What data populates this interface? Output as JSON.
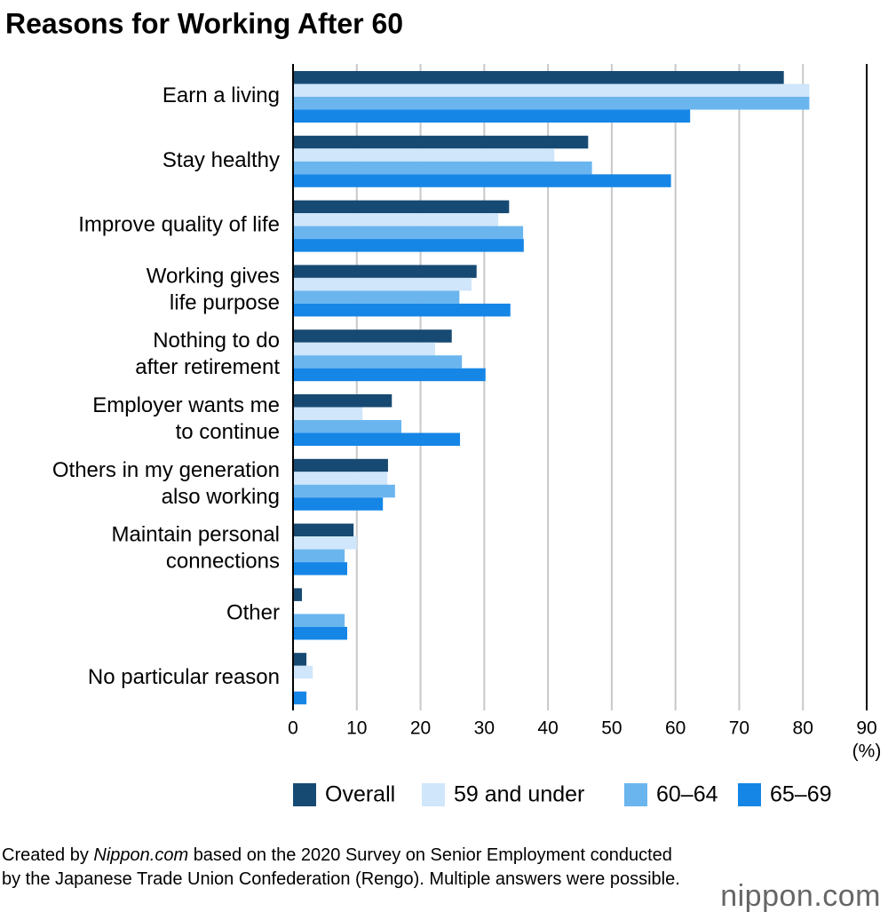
{
  "chart_data": {
    "type": "bar",
    "orientation": "horizontal",
    "title": "Reasons for Working After 60",
    "categories": [
      "Earn a living",
      "Stay healthy",
      "Improve quality of life",
      "Working gives\nlife purpose",
      "Nothing to do\nafter retirement",
      "Employer wants me\nto continue",
      "Others in my generation\nalso working",
      "Maintain personal\nconnections",
      "Other",
      "No particular reason"
    ],
    "series": [
      {
        "name": "Overall",
        "color": "#174a73",
        "values": [
          77.0,
          46.3,
          33.9,
          28.8,
          24.9,
          15.5,
          14.9,
          9.5,
          1.4,
          2.1
        ]
      },
      {
        "name": "59 and under",
        "color": "#cfe6fb",
        "values": [
          81.0,
          41.0,
          32.2,
          28.0,
          22.3,
          10.9,
          14.8,
          10.0,
          null,
          3.1
        ]
      },
      {
        "name": "60–64",
        "color": "#6bb5ef",
        "values": [
          81.0,
          46.9,
          36.1,
          26.1,
          26.5,
          17.0,
          16.0,
          8.1,
          8.1,
          null
        ]
      },
      {
        "name": "65–69",
        "color": "#1586e6",
        "values": [
          62.3,
          59.3,
          36.2,
          34.1,
          30.2,
          26.2,
          14.1,
          8.5,
          8.5,
          2.1
        ]
      }
    ],
    "xlim": [
      0,
      90
    ],
    "xticks": [
      0,
      10,
      20,
      30,
      40,
      50,
      60,
      70,
      80,
      90
    ],
    "x_unit": "(%)",
    "grid": true
  },
  "source": {
    "prefix": "Created by",
    "italic": "Nippon.com",
    "rest": "based on the 2020 Survey on Senior Employment conducted by the Japanese Trade Union Confederation (Rengo). Multiple answers were possible."
  },
  "logo": "nippon.com"
}
